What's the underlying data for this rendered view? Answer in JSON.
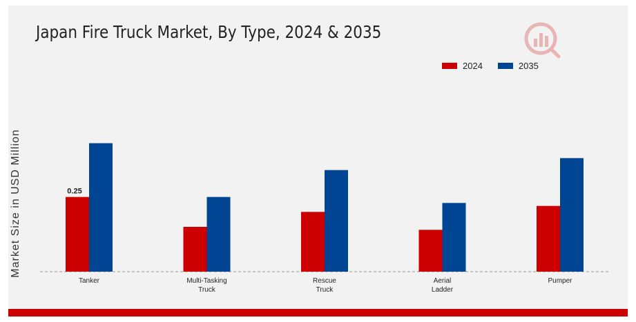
{
  "title": "Japan Fire Truck Market, By Type, 2024 & 2035",
  "ylabel": "Market Size in USD Million",
  "legend": [
    {
      "label": "2024",
      "color": "#cc0000"
    },
    {
      "label": "2035",
      "color": "#004494"
    }
  ],
  "chart_data": {
    "type": "bar",
    "categories": [
      "Tanker",
      "Multi-Tasking Truck",
      "Rescue Truck",
      "Aerial Ladder",
      "Pumper"
    ],
    "category_lines": [
      [
        "Tanker"
      ],
      [
        "Multi-Tasking",
        "Truck"
      ],
      [
        "Rescue",
        "Truck"
      ],
      [
        "Aerial",
        "Ladder"
      ],
      [
        "Pumper"
      ]
    ],
    "series": [
      {
        "name": "2024",
        "color": "#cc0000",
        "values": [
          0.25,
          0.15,
          0.2,
          0.14,
          0.22
        ]
      },
      {
        "name": "2035",
        "color": "#004494",
        "values": [
          0.43,
          0.25,
          0.34,
          0.23,
          0.38
        ]
      }
    ],
    "data_labels": [
      {
        "series": 0,
        "index": 0,
        "text": "0.25"
      }
    ],
    "ylabel": "Market Size in USD Million",
    "ylim": [
      0,
      0.6
    ],
    "grid": false,
    "legend_position": "top-right",
    "baseline_style": "dashed"
  }
}
